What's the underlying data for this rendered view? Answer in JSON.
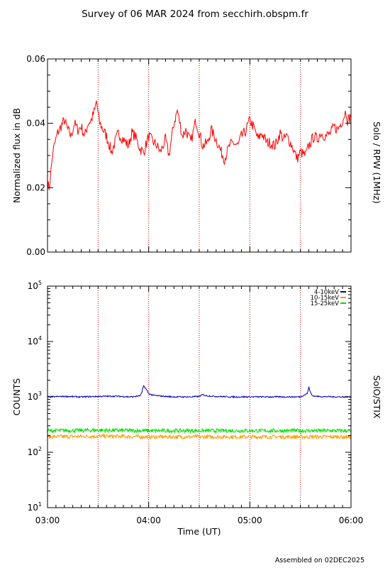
{
  "page": {
    "title": "Survey of 06 MAR 2024 from secchirh.obspm.fr",
    "footer": "Assembled on 02DEC2025"
  },
  "chart_data": [
    {
      "type": "line",
      "title": "",
      "instrument_label": "Solo / RPW (1MHz)",
      "xlabel": "",
      "ylabel": "Normalized flux in dB",
      "xlim": [
        "03:00",
        "06:00"
      ],
      "ylim": [
        0.0,
        0.06
      ],
      "yticks": [
        "0.00",
        "0.02",
        "0.04",
        "0.06"
      ],
      "x_ticklabels": [],
      "grid": "vertical dotted red lines every 30 min",
      "series": [
        {
          "color": "#ff0000",
          "x": [
            "03:00",
            "03:01",
            "03:02",
            "03:03",
            "03:04",
            "03:05",
            "03:06",
            "03:08",
            "03:10",
            "03:12",
            "03:14",
            "03:16",
            "03:18",
            "03:20",
            "03:22",
            "03:24",
            "03:26",
            "03:28",
            "03:29",
            "03:30",
            "03:31",
            "03:33",
            "03:35",
            "03:38",
            "03:40",
            "03:42",
            "03:45",
            "03:48",
            "03:50",
            "03:52",
            "03:55",
            "03:57",
            "04:00",
            "04:03",
            "04:05",
            "04:07",
            "04:10",
            "04:12",
            "04:15",
            "04:17",
            "04:20",
            "04:22",
            "04:25",
            "04:28",
            "04:30",
            "04:32",
            "04:35",
            "04:37",
            "04:40",
            "04:43",
            "04:45",
            "04:48",
            "04:50",
            "04:53",
            "04:55",
            "04:57",
            "05:00",
            "05:02",
            "05:05",
            "05:07",
            "05:10",
            "05:12",
            "05:15",
            "05:18",
            "05:20",
            "05:22",
            "05:25",
            "05:28",
            "05:30",
            "05:33",
            "05:35",
            "05:38",
            "05:40",
            "05:42",
            "05:45",
            "05:48",
            "05:50",
            "05:52",
            "05:55",
            "05:57",
            "05:58",
            "06:00"
          ],
          "y": [
            0.021,
            0.02,
            0.025,
            0.03,
            0.033,
            0.035,
            0.037,
            0.039,
            0.041,
            0.038,
            0.036,
            0.04,
            0.038,
            0.039,
            0.036,
            0.04,
            0.041,
            0.044,
            0.047,
            0.043,
            0.04,
            0.038,
            0.036,
            0.031,
            0.034,
            0.037,
            0.035,
            0.033,
            0.037,
            0.036,
            0.032,
            0.031,
            0.036,
            0.034,
            0.033,
            0.031,
            0.035,
            0.03,
            0.04,
            0.044,
            0.036,
            0.038,
            0.034,
            0.041,
            0.037,
            0.033,
            0.034,
            0.038,
            0.035,
            0.031,
            0.029,
            0.033,
            0.034,
            0.033,
            0.036,
            0.037,
            0.041,
            0.039,
            0.035,
            0.037,
            0.034,
            0.034,
            0.033,
            0.037,
            0.035,
            0.036,
            0.033,
            0.029,
            0.031,
            0.03,
            0.033,
            0.036,
            0.035,
            0.037,
            0.036,
            0.037,
            0.039,
            0.038,
            0.041,
            0.044,
            0.041,
            0.042
          ]
        }
      ]
    },
    {
      "type": "line",
      "title": "",
      "instrument_label": "SolO/STIX",
      "xlabel": "Time (UT)",
      "ylabel": "COUNTS",
      "y_scale": "log",
      "xlim": [
        "03:00",
        "06:00"
      ],
      "ylim": [
        10,
        100000
      ],
      "yticks": [
        {
          "base": "10",
          "exp": "1"
        },
        {
          "base": "10",
          "exp": "2"
        },
        {
          "base": "10",
          "exp": "3"
        },
        {
          "base": "10",
          "exp": "4"
        },
        {
          "base": "10",
          "exp": "5"
        }
      ],
      "x_ticklabels": [
        "03:00",
        "04:00",
        "05:00",
        "06:00"
      ],
      "legend_position": "top-right",
      "grid": "vertical dotted red lines every 30 min",
      "series": [
        {
          "name": "4-10keV",
          "color": "#0000b4",
          "x": [
            "03:00",
            "03:10",
            "03:20",
            "03:30",
            "03:40",
            "03:50",
            "03:55",
            "03:56",
            "03:57",
            "03:58",
            "03:59",
            "04:00",
            "04:02",
            "04:05",
            "04:10",
            "04:15",
            "04:20",
            "04:25",
            "04:30",
            "04:32",
            "04:34",
            "04:40",
            "04:50",
            "05:00",
            "05:10",
            "05:20",
            "05:30",
            "05:34",
            "05:35",
            "05:36",
            "05:37",
            "05:40",
            "05:50",
            "06:00"
          ],
          "y": [
            1000,
            1020,
            1000,
            1020,
            1030,
            1000,
            1050,
            1200,
            1600,
            1450,
            1300,
            1150,
            1080,
            1050,
            1020,
            1000,
            1000,
            1000,
            1020,
            1100,
            1050,
            1020,
            1000,
            1000,
            1000,
            1000,
            1000,
            1150,
            1500,
            1200,
            1050,
            1020,
            1000,
            1000
          ]
        },
        {
          "name": "10-15keV",
          "color": "#ff9900",
          "x": [
            "03:00",
            "03:30",
            "04:00",
            "04:30",
            "05:00",
            "05:30",
            "06:00"
          ],
          "y": [
            190,
            195,
            190,
            190,
            190,
            190,
            190
          ]
        },
        {
          "name": "15-25keV",
          "color": "#00dd00",
          "x": [
            "03:00",
            "03:30",
            "04:00",
            "04:30",
            "05:00",
            "05:30",
            "06:00"
          ],
          "y": [
            245,
            250,
            245,
            245,
            245,
            245,
            245
          ]
        }
      ]
    }
  ],
  "colors": {
    "grid_line": "#cc0000",
    "axes": "#000000",
    "background": "#ffffff"
  }
}
